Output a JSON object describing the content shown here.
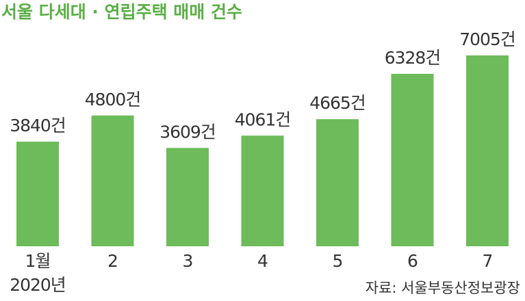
{
  "chart_data": {
    "type": "bar",
    "title": "서울 다세대 · 연립주택 매매 건수",
    "categories": [
      "1월",
      "2",
      "3",
      "4",
      "5",
      "6",
      "7"
    ],
    "year_label": "2020년",
    "values": [
      3840,
      4800,
      3609,
      4061,
      4665,
      6328,
      7005
    ],
    "value_labels": [
      "3840건",
      "4800건",
      "3609건",
      "4061건",
      "4665건",
      "6328건",
      "7005건"
    ],
    "color": "#6dbb5a",
    "source": "자료: 서울부동산정보광장"
  }
}
